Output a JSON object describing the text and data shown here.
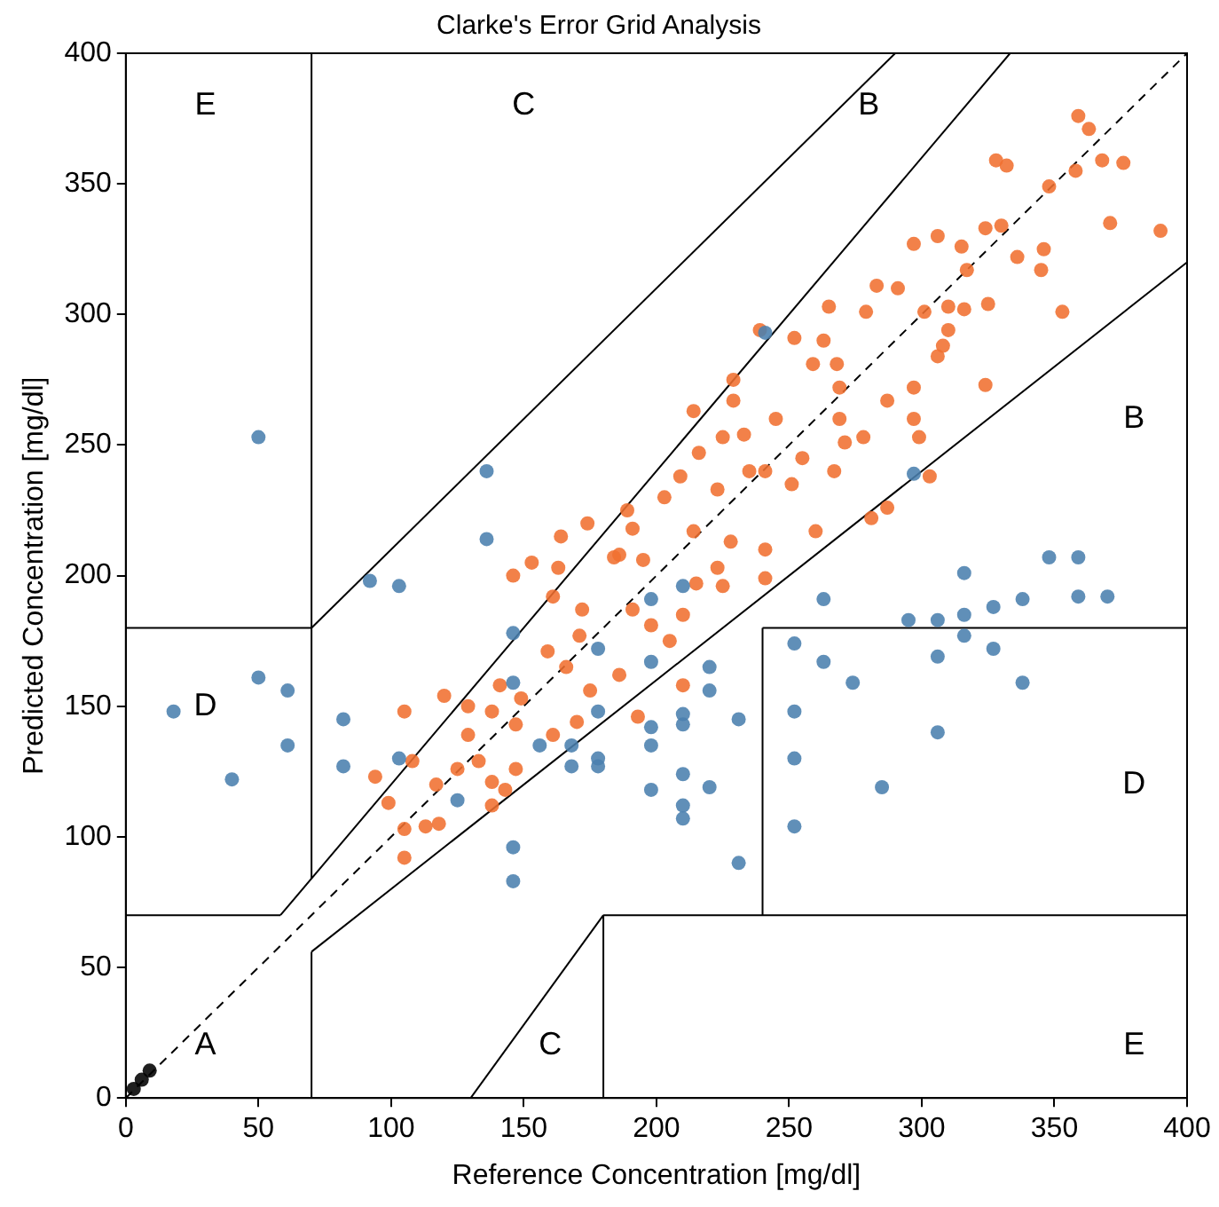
{
  "chart_data": {
    "type": "scatter",
    "title": "Clarke's Error Grid Analysis",
    "xlabel": "Reference Concentration [mg/dl]",
    "ylabel": "Predicted Concentration [mg/dl]",
    "xlim": [
      0,
      400
    ],
    "ylim": [
      0,
      400
    ],
    "xticks": [
      0,
      50,
      100,
      150,
      200,
      250,
      300,
      350,
      400
    ],
    "yticks": [
      0,
      50,
      100,
      150,
      200,
      250,
      300,
      350,
      400
    ],
    "grid": false,
    "legend": false,
    "series": [
      {
        "type": "line",
        "color": "#000000",
        "line_style": "dashed",
        "marker": "none",
        "x": [
          0,
          400
        ],
        "values": [
          0,
          400
        ]
      },
      {
        "type": "line",
        "color": "#000000",
        "line_style": "solid",
        "marker": "none",
        "x": [
          0,
          58.3
        ],
        "values": [
          70,
          70
        ]
      },
      {
        "type": "line",
        "color": "#000000",
        "line_style": "solid",
        "marker": "none",
        "x": [
          58.3,
          333.3
        ],
        "values": [
          70,
          400
        ]
      },
      {
        "type": "line",
        "color": "#000000",
        "line_style": "solid",
        "marker": "none",
        "x": [
          70,
          70
        ],
        "values": [
          84,
          400
        ]
      },
      {
        "type": "line",
        "color": "#000000",
        "line_style": "solid",
        "marker": "none",
        "x": [
          0,
          70
        ],
        "values": [
          180,
          180
        ]
      },
      {
        "type": "line",
        "color": "#000000",
        "line_style": "solid",
        "marker": "none",
        "x": [
          70,
          290
        ],
        "values": [
          180,
          400
        ]
      },
      {
        "type": "line",
        "color": "#000000",
        "line_style": "solid",
        "marker": "none",
        "x": [
          70,
          70
        ],
        "values": [
          0,
          56
        ]
      },
      {
        "type": "line",
        "color": "#000000",
        "line_style": "solid",
        "marker": "none",
        "x": [
          70,
          400
        ],
        "values": [
          56,
          320
        ]
      },
      {
        "type": "line",
        "color": "#000000",
        "line_style": "solid",
        "marker": "none",
        "x": [
          180,
          180
        ],
        "values": [
          0,
          70
        ]
      },
      {
        "type": "line",
        "color": "#000000",
        "line_style": "solid",
        "marker": "none",
        "x": [
          180,
          400
        ],
        "values": [
          70,
          70
        ]
      },
      {
        "type": "line",
        "color": "#000000",
        "line_style": "solid",
        "marker": "none",
        "x": [
          240,
          240
        ],
        "values": [
          70,
          180
        ]
      },
      {
        "type": "line",
        "color": "#000000",
        "line_style": "solid",
        "marker": "none",
        "x": [
          240,
          400
        ],
        "values": [
          180,
          180
        ]
      },
      {
        "type": "line",
        "color": "#000000",
        "line_style": "solid",
        "marker": "none",
        "x": [
          130,
          180
        ],
        "values": [
          0,
          70
        ]
      },
      {
        "type": "scatter",
        "color": "#4a7fae",
        "marker": "circle",
        "x": [
          50,
          136,
          136,
          92,
          103,
          50,
          61,
          18,
          61,
          40,
          82,
          82,
          103,
          146,
          146,
          125,
          146,
          146,
          156,
          168,
          168,
          178,
          178,
          178,
          178,
          198,
          198,
          198,
          198,
          198,
          210,
          210,
          210,
          210,
          210,
          210,
          220,
          220,
          220,
          231,
          231,
          252,
          252,
          252,
          252,
          263,
          263,
          274,
          285,
          295,
          306,
          306,
          306,
          316,
          316,
          316,
          327,
          327,
          338,
          338,
          359,
          370,
          241,
          297,
          348,
          359
        ],
        "values": [
          253,
          240,
          214,
          198,
          196,
          161,
          156,
          148,
          135,
          122,
          145,
          127,
          130,
          178,
          159,
          114,
          96,
          83,
          135,
          135,
          127,
          130,
          127,
          148,
          172,
          142,
          135,
          118,
          167,
          191,
          196,
          147,
          143,
          124,
          112,
          107,
          165,
          156,
          119,
          145,
          90,
          174,
          148,
          130,
          104,
          191,
          167,
          159,
          119,
          183,
          183,
          169,
          140,
          201,
          185,
          177,
          188,
          172,
          191,
          159,
          192,
          192,
          293,
          239,
          207,
          207
        ]
      },
      {
        "type": "scatter",
        "color": "#f07030",
        "marker": "circle",
        "x": [
          359,
          363,
          368,
          376,
          328,
          332,
          358,
          348,
          371,
          390,
          324,
          330,
          297,
          306,
          315,
          317,
          336,
          346,
          345,
          353,
          283,
          291,
          279,
          301,
          310,
          325,
          316,
          265,
          239,
          252,
          263,
          310,
          306,
          308,
          259,
          268,
          229,
          214,
          229,
          269,
          269,
          271,
          287,
          297,
          297,
          299,
          324,
          245,
          233,
          225,
          216,
          255,
          241,
          267,
          278,
          203,
          209,
          223,
          235,
          251,
          260,
          281,
          287,
          303,
          214,
          228,
          241,
          223,
          105,
          94,
          99,
          105,
          105,
          108,
          113,
          118,
          117,
          120,
          129,
          129,
          125,
          133,
          138,
          138,
          143,
          147,
          138,
          141,
          149,
          147,
          161,
          166,
          159,
          171,
          175,
          170,
          161,
          172,
          186,
          191,
          193,
          198,
          164,
          189,
          191,
          186,
          195,
          163,
          174,
          184,
          146,
          153,
          210,
          205,
          210,
          215,
          225,
          241
        ],
        "values": [
          376,
          371,
          359,
          358,
          359,
          357,
          355,
          349,
          335,
          332,
          333,
          334,
          327,
          330,
          326,
          317,
          322,
          325,
          317,
          301,
          311,
          310,
          301,
          301,
          303,
          304,
          302,
          303,
          294,
          291,
          290,
          294,
          284,
          288,
          281,
          281,
          275,
          263,
          267,
          272,
          260,
          251,
          267,
          272,
          260,
          253,
          273,
          260,
          254,
          253,
          247,
          245,
          240,
          240,
          253,
          230,
          238,
          233,
          240,
          235,
          217,
          222,
          226,
          238,
          217,
          213,
          210,
          203,
          148,
          123,
          113,
          103,
          92,
          129,
          104,
          105,
          120,
          154,
          150,
          139,
          126,
          129,
          121,
          112,
          118,
          126,
          148,
          158,
          153,
          143,
          139,
          165,
          171,
          177,
          156,
          144,
          192,
          187,
          162,
          187,
          146,
          181,
          215,
          225,
          218,
          208,
          206,
          203,
          220,
          207,
          200,
          205,
          158,
          175,
          185,
          197,
          196,
          199
        ]
      },
      {
        "type": "scatter",
        "color": "#000000",
        "marker": "circle",
        "x": [
          3,
          6,
          9
        ],
        "values": [
          3.5,
          7,
          10.5
        ]
      }
    ],
    "annotations": [
      "A",
      "D",
      "E",
      "C",
      "C",
      "E",
      "D",
      "B",
      "B"
    ]
  }
}
